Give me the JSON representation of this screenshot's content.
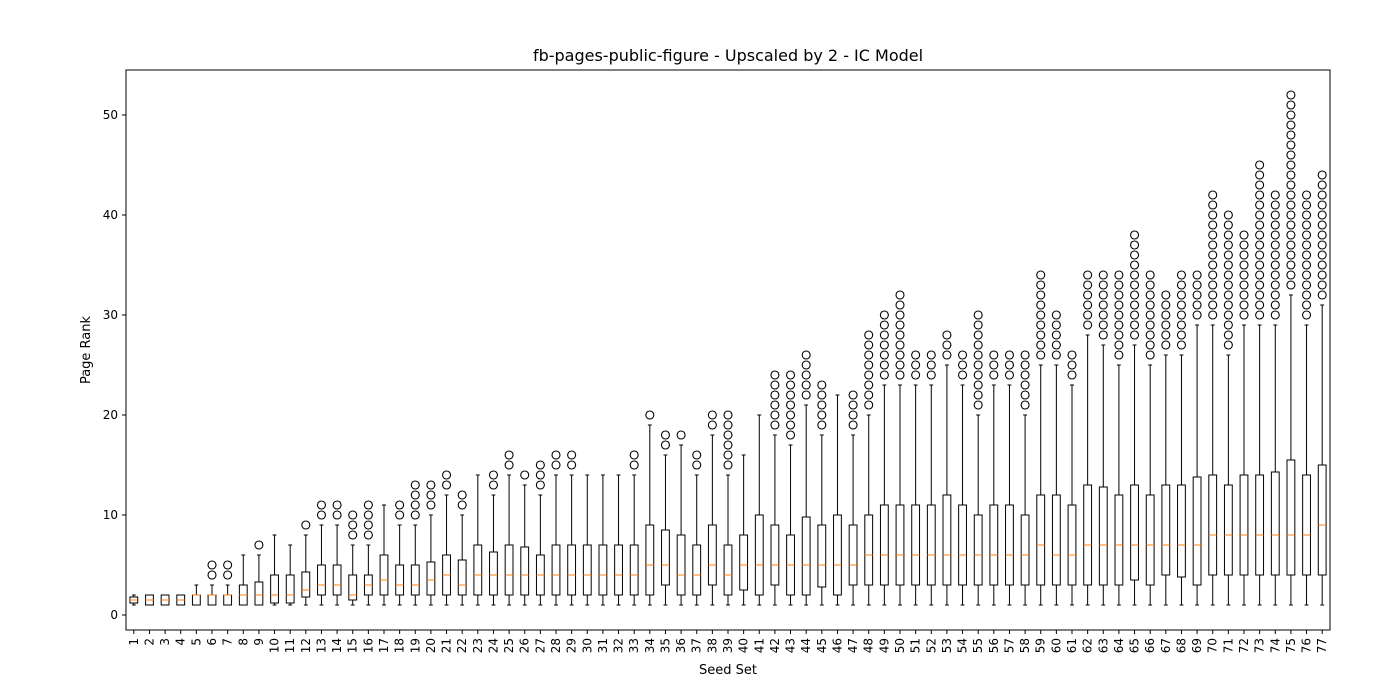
{
  "chart_data": {
    "type": "box",
    "title": "fb-pages-public-figure - Upscaled by 2 - IC Model",
    "xlabel": "Seed Set",
    "ylabel": "Page Rank",
    "ylim": [
      -1.5,
      54.5
    ],
    "yticks": [
      0,
      10,
      20,
      30,
      40,
      50
    ],
    "grid": false,
    "colors": {
      "box": "#000000",
      "median": "#ff7f0e",
      "axis": "#000000"
    },
    "categories": [
      "1",
      "2",
      "3",
      "4",
      "5",
      "6",
      "7",
      "8",
      "9",
      "10",
      "11",
      "12",
      "13",
      "14",
      "15",
      "16",
      "17",
      "18",
      "19",
      "20",
      "21",
      "22",
      "23",
      "24",
      "25",
      "26",
      "27",
      "28",
      "29",
      "30",
      "31",
      "32",
      "33",
      "34",
      "35",
      "36",
      "37",
      "38",
      "39",
      "40",
      "41",
      "42",
      "43",
      "44",
      "45",
      "46",
      "47",
      "48",
      "49",
      "50",
      "51",
      "52",
      "53",
      "54",
      "55",
      "56",
      "57",
      "58",
      "59",
      "60",
      "61",
      "62",
      "63",
      "64",
      "65",
      "66",
      "67",
      "68",
      "69",
      "70",
      "71",
      "72",
      "73",
      "74",
      "75",
      "76",
      "77"
    ],
    "boxes": [
      {
        "min": 1,
        "q1": 1.2,
        "med": 1.5,
        "q3": 1.8,
        "max": 2,
        "out": []
      },
      {
        "min": 1,
        "q1": 1,
        "med": 1.5,
        "q3": 2,
        "max": 2,
        "out": []
      },
      {
        "min": 1,
        "q1": 1,
        "med": 1.5,
        "q3": 2,
        "max": 2,
        "out": []
      },
      {
        "min": 1,
        "q1": 1,
        "med": 1.5,
        "q3": 2,
        "max": 2,
        "out": []
      },
      {
        "min": 1,
        "q1": 1,
        "med": 2,
        "q3": 2,
        "max": 3,
        "out": []
      },
      {
        "min": 1,
        "q1": 1,
        "med": 2,
        "q3": 2,
        "max": 3,
        "out": [
          4,
          5
        ]
      },
      {
        "min": 1,
        "q1": 1,
        "med": 2,
        "q3": 2,
        "max": 3,
        "out": [
          4,
          5
        ]
      },
      {
        "min": 1,
        "q1": 1,
        "med": 2,
        "q3": 3,
        "max": 6,
        "out": []
      },
      {
        "min": 1,
        "q1": 1,
        "med": 2,
        "q3": 3.3,
        "max": 6,
        "out": [
          7
        ]
      },
      {
        "min": 1,
        "q1": 1.2,
        "med": 2,
        "q3": 4,
        "max": 8,
        "out": []
      },
      {
        "min": 1,
        "q1": 1.2,
        "med": 2,
        "q3": 4,
        "max": 7,
        "out": []
      },
      {
        "min": 1,
        "q1": 1.8,
        "med": 2.5,
        "q3": 4.3,
        "max": 8,
        "out": [
          9
        ]
      },
      {
        "min": 1,
        "q1": 2,
        "med": 3,
        "q3": 5,
        "max": 9,
        "out": [
          10,
          11
        ]
      },
      {
        "min": 1,
        "q1": 2,
        "med": 3,
        "q3": 5,
        "max": 9,
        "out": [
          10,
          11
        ]
      },
      {
        "min": 1,
        "q1": 1.5,
        "med": 2,
        "q3": 4,
        "max": 7,
        "out": [
          8,
          9,
          10
        ]
      },
      {
        "min": 1,
        "q1": 2,
        "med": 3,
        "q3": 4,
        "max": 7,
        "out": [
          8,
          9,
          10,
          11
        ]
      },
      {
        "min": 1,
        "q1": 2,
        "med": 3.5,
        "q3": 6,
        "max": 11,
        "out": []
      },
      {
        "min": 1,
        "q1": 2,
        "med": 3,
        "q3": 5,
        "max": 9,
        "out": [
          10,
          11
        ]
      },
      {
        "min": 1,
        "q1": 2,
        "med": 3,
        "q3": 5,
        "max": 9,
        "out": [
          10,
          11,
          12,
          13
        ]
      },
      {
        "min": 1,
        "q1": 2,
        "med": 3.5,
        "q3": 5.3,
        "max": 10,
        "out": [
          11,
          12,
          13
        ]
      },
      {
        "min": 1,
        "q1": 2,
        "med": 4,
        "q3": 6,
        "max": 12,
        "out": [
          13,
          14
        ]
      },
      {
        "min": 1,
        "q1": 2,
        "med": 3,
        "q3": 5.5,
        "max": 10,
        "out": [
          11,
          12
        ]
      },
      {
        "min": 1,
        "q1": 2,
        "med": 4,
        "q3": 7,
        "max": 14,
        "out": []
      },
      {
        "min": 1,
        "q1": 2,
        "med": 4,
        "q3": 6.3,
        "max": 12,
        "out": [
          13,
          14
        ]
      },
      {
        "min": 1,
        "q1": 2,
        "med": 4,
        "q3": 7,
        "max": 14,
        "out": [
          15,
          16
        ]
      },
      {
        "min": 1,
        "q1": 2,
        "med": 4,
        "q3": 6.8,
        "max": 13,
        "out": [
          14
        ]
      },
      {
        "min": 1,
        "q1": 2,
        "med": 4,
        "q3": 6,
        "max": 12,
        "out": [
          13,
          14,
          15
        ]
      },
      {
        "min": 1,
        "q1": 2,
        "med": 4,
        "q3": 7,
        "max": 14,
        "out": [
          15,
          16
        ]
      },
      {
        "min": 1,
        "q1": 2,
        "med": 4,
        "q3": 7,
        "max": 14,
        "out": [
          15,
          16
        ]
      },
      {
        "min": 1,
        "q1": 2,
        "med": 4,
        "q3": 7,
        "max": 14,
        "out": []
      },
      {
        "min": 1,
        "q1": 2,
        "med": 4,
        "q3": 7,
        "max": 14,
        "out": []
      },
      {
        "min": 1,
        "q1": 2,
        "med": 4,
        "q3": 7,
        "max": 14,
        "out": []
      },
      {
        "min": 1,
        "q1": 2,
        "med": 4,
        "q3": 7,
        "max": 14,
        "out": [
          15,
          16
        ]
      },
      {
        "min": 1,
        "q1": 2,
        "med": 5,
        "q3": 9,
        "max": 19,
        "out": [
          20
        ]
      },
      {
        "min": 1,
        "q1": 3,
        "med": 5,
        "q3": 8.5,
        "max": 16,
        "out": [
          17,
          18
        ]
      },
      {
        "min": 1,
        "q1": 2,
        "med": 4,
        "q3": 8,
        "max": 17,
        "out": [
          18
        ]
      },
      {
        "min": 1,
        "q1": 2,
        "med": 4,
        "q3": 7,
        "max": 14,
        "out": [
          15,
          16
        ]
      },
      {
        "min": 1,
        "q1": 3,
        "med": 5,
        "q3": 9,
        "max": 18,
        "out": [
          19,
          20
        ]
      },
      {
        "min": 1,
        "q1": 2,
        "med": 4,
        "q3": 7,
        "max": 14,
        "out": [
          15,
          16,
          17,
          18,
          19,
          20
        ]
      },
      {
        "min": 1,
        "q1": 2.5,
        "med": 5,
        "q3": 8,
        "max": 16,
        "out": []
      },
      {
        "min": 1,
        "q1": 2,
        "med": 5,
        "q3": 10,
        "max": 20,
        "out": []
      },
      {
        "min": 1,
        "q1": 3,
        "med": 5,
        "q3": 9,
        "max": 18,
        "out": [
          19,
          20,
          21,
          22,
          23,
          24
        ]
      },
      {
        "min": 1,
        "q1": 2,
        "med": 5,
        "q3": 8,
        "max": 17,
        "out": [
          18,
          19,
          20,
          21,
          22,
          23,
          24
        ]
      },
      {
        "min": 1,
        "q1": 2,
        "med": 5,
        "q3": 9.8,
        "max": 21,
        "out": [
          22,
          23,
          24,
          25,
          26
        ]
      },
      {
        "min": 1,
        "q1": 2.8,
        "med": 5,
        "q3": 9,
        "max": 18,
        "out": [
          19,
          20,
          21,
          22,
          23
        ]
      },
      {
        "min": 1,
        "q1": 2,
        "med": 5,
        "q3": 10,
        "max": 22,
        "out": []
      },
      {
        "min": 1,
        "q1": 3,
        "med": 5,
        "q3": 9,
        "max": 18,
        "out": [
          19,
          20,
          21,
          22
        ]
      },
      {
        "min": 1,
        "q1": 3,
        "med": 6,
        "q3": 10,
        "max": 20,
        "out": [
          21,
          22,
          23,
          24,
          25,
          26,
          27,
          28
        ]
      },
      {
        "min": 1,
        "q1": 3,
        "med": 6,
        "q3": 11,
        "max": 23,
        "out": [
          24,
          25,
          26,
          27,
          28,
          29,
          30
        ]
      },
      {
        "min": 1,
        "q1": 3,
        "med": 6,
        "q3": 11,
        "max": 23,
        "out": [
          24,
          25,
          26,
          27,
          28,
          29,
          30,
          31,
          32
        ]
      },
      {
        "min": 1,
        "q1": 3,
        "med": 6,
        "q3": 11,
        "max": 23,
        "out": [
          24,
          25,
          26
        ]
      },
      {
        "min": 1,
        "q1": 3,
        "med": 6,
        "q3": 11,
        "max": 23,
        "out": [
          24,
          25,
          26
        ]
      },
      {
        "min": 1,
        "q1": 3,
        "med": 6,
        "q3": 12,
        "max": 25,
        "out": [
          26,
          27,
          28
        ]
      },
      {
        "min": 1,
        "q1": 3,
        "med": 6,
        "q3": 11,
        "max": 23,
        "out": [
          24,
          25,
          26
        ]
      },
      {
        "min": 1,
        "q1": 3,
        "med": 6,
        "q3": 10,
        "max": 20,
        "out": [
          21,
          22,
          23,
          24,
          25,
          26,
          27,
          28,
          29,
          30
        ]
      },
      {
        "min": 1,
        "q1": 3,
        "med": 6,
        "q3": 11,
        "max": 23,
        "out": [
          24,
          25,
          26
        ]
      },
      {
        "min": 1,
        "q1": 3,
        "med": 6,
        "q3": 11,
        "max": 23,
        "out": [
          24,
          25,
          26
        ]
      },
      {
        "min": 1,
        "q1": 3,
        "med": 6,
        "q3": 10,
        "max": 20,
        "out": [
          21,
          22,
          23,
          24,
          25,
          26
        ]
      },
      {
        "min": 1,
        "q1": 3,
        "med": 7,
        "q3": 12,
        "max": 25,
        "out": [
          26,
          27,
          28,
          29,
          30,
          31,
          32,
          33,
          34
        ]
      },
      {
        "min": 1,
        "q1": 3,
        "med": 6,
        "q3": 12,
        "max": 25,
        "out": [
          26,
          27,
          28,
          29,
          30
        ]
      },
      {
        "min": 1,
        "q1": 3,
        "med": 6,
        "q3": 11,
        "max": 23,
        "out": [
          24,
          25,
          26
        ]
      },
      {
        "min": 1,
        "q1": 3,
        "med": 7,
        "q3": 13,
        "max": 28,
        "out": [
          29,
          30,
          31,
          32,
          33,
          34
        ]
      },
      {
        "min": 1,
        "q1": 3,
        "med": 7,
        "q3": 12.8,
        "max": 27,
        "out": [
          28,
          29,
          30,
          31,
          32,
          33,
          34
        ]
      },
      {
        "min": 1,
        "q1": 3,
        "med": 7,
        "q3": 12,
        "max": 25,
        "out": [
          26,
          27,
          28,
          29,
          30,
          31,
          32,
          33,
          34
        ]
      },
      {
        "min": 1,
        "q1": 3.5,
        "med": 7,
        "q3": 13,
        "max": 27,
        "out": [
          28,
          29,
          30,
          31,
          32,
          33,
          34,
          35,
          36,
          37,
          38
        ]
      },
      {
        "min": 1,
        "q1": 3,
        "med": 7,
        "q3": 12,
        "max": 25,
        "out": [
          26,
          27,
          28,
          29,
          30,
          31,
          32,
          33,
          34
        ]
      },
      {
        "min": 1,
        "q1": 4,
        "med": 7,
        "q3": 13,
        "max": 26,
        "out": [
          27,
          28,
          29,
          30,
          31,
          32
        ]
      },
      {
        "min": 1,
        "q1": 3.8,
        "med": 7,
        "q3": 13,
        "max": 26,
        "out": [
          27,
          28,
          29,
          30,
          31,
          32,
          33,
          34
        ]
      },
      {
        "min": 1,
        "q1": 3,
        "med": 7,
        "q3": 13.8,
        "max": 29,
        "out": [
          30,
          31,
          32,
          33,
          34
        ]
      },
      {
        "min": 1,
        "q1": 4,
        "med": 8,
        "q3": 14,
        "max": 29,
        "out": [
          30,
          31,
          32,
          33,
          34,
          35,
          36,
          37,
          38,
          39,
          40,
          41,
          42
        ]
      },
      {
        "min": 1,
        "q1": 4,
        "med": 8,
        "q3": 13,
        "max": 26,
        "out": [
          27,
          28,
          29,
          30,
          31,
          32,
          33,
          34,
          35,
          36,
          37,
          38,
          39,
          40
        ]
      },
      {
        "min": 1,
        "q1": 4,
        "med": 8,
        "q3": 14,
        "max": 29,
        "out": [
          30,
          31,
          32,
          33,
          34,
          35,
          36,
          37,
          38
        ]
      },
      {
        "min": 1,
        "q1": 4,
        "med": 8,
        "q3": 14,
        "max": 29,
        "out": [
          30,
          31,
          32,
          33,
          34,
          35,
          36,
          37,
          38,
          39,
          40,
          41,
          42,
          43,
          44,
          45
        ]
      },
      {
        "min": 1,
        "q1": 4,
        "med": 8,
        "q3": 14.3,
        "max": 29,
        "out": [
          30,
          31,
          32,
          33,
          34,
          35,
          36,
          37,
          38,
          39,
          40,
          41,
          42
        ]
      },
      {
        "min": 1,
        "q1": 4,
        "med": 8,
        "q3": 15.5,
        "max": 32,
        "out": [
          33,
          34,
          35,
          36,
          37,
          38,
          39,
          40,
          41,
          42,
          43,
          44,
          45,
          46,
          47,
          48,
          49,
          50,
          51,
          52
        ]
      },
      {
        "min": 1,
        "q1": 4,
        "med": 8,
        "q3": 14,
        "max": 29,
        "out": [
          30,
          31,
          32,
          33,
          34,
          35,
          36,
          37,
          38,
          39,
          40,
          41,
          42
        ]
      },
      {
        "min": 1,
        "q1": 4,
        "med": 9,
        "q3": 15,
        "max": 31,
        "out": [
          32,
          33,
          34,
          35,
          36,
          37,
          38,
          39,
          40,
          41,
          42,
          43,
          44
        ]
      }
    ]
  }
}
